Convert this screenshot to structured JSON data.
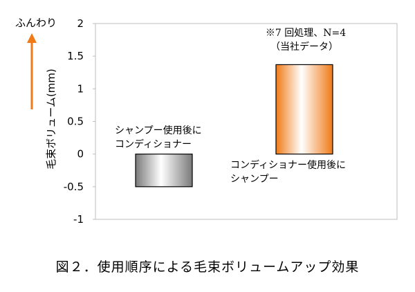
{
  "chart_data": {
    "type": "bar",
    "title": "",
    "caption": "図２．使用順序による毛束ボリュームアップ効果",
    "ylabel": "毛束ボリューム(mm)",
    "ylim": [
      -1,
      2
    ],
    "yticks": [
      "2",
      "1.5",
      "1",
      "0.5",
      "0",
      "-0.5",
      "-1"
    ],
    "direction_label": "ふんわり",
    "categories": [
      [
        "シャンプー使用後に",
        "コンディショナー"
      ],
      [
        "コンディショナー使用後に",
        "シャンプー"
      ]
    ],
    "values": [
      -0.5,
      1.37
    ],
    "bar_colors": [
      "#8a8a8a",
      "#f07a18"
    ],
    "note_lines": [
      "※7 回処理、N=4",
      "（当社データ）"
    ],
    "arrow_color": "#f07a18",
    "grid": false
  }
}
